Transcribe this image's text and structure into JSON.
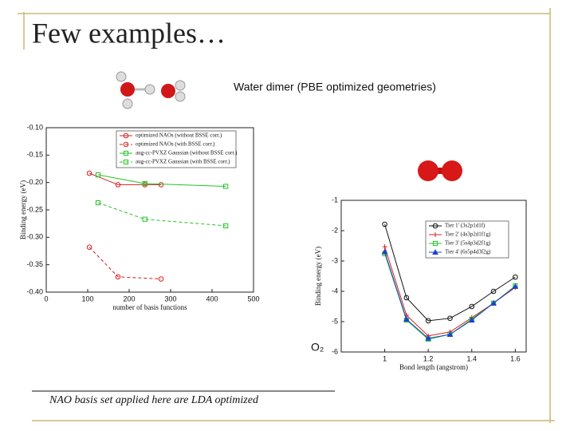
{
  "slide_title": "Few examples…",
  "water_caption": "Water dimer (PBE optimized geometries)",
  "o2_caption": "O₂",
  "footer": "NAO basis set applied here are LDA optimized",
  "chart_data": [
    {
      "type": "line",
      "xlabel": "number of basis functions",
      "ylabel": "Binding energy (eV)",
      "xlim": [
        0,
        500
      ],
      "xticks": [
        0,
        100,
        200,
        300,
        400,
        500
      ],
      "ylim": [
        -0.4,
        -0.1
      ],
      "yticks": [
        {
          "value": -0.1,
          "label": "-0.10"
        },
        -0.15,
        {
          "value": -0.2,
          "label": "-0.20"
        },
        -0.25,
        {
          "value": -0.3,
          "label": "-0.30"
        },
        -0.35,
        {
          "value": -0.4,
          "label": "-0.40"
        }
      ],
      "legend": "upper right",
      "grid": false,
      "series": [
        {
          "name": "optimized NAOs (without BSSE corr.)",
          "color": "#d42020",
          "marker": "circle",
          "linestyle": "solid",
          "x": [
            104,
            173,
            238,
            277
          ],
          "values": [
            -0.183,
            -0.204,
            -0.204,
            -0.204
          ]
        },
        {
          "name": "optimized NAOs (with BSSE corr.)",
          "color": "#d42020",
          "marker": "circle",
          "linestyle": "dashed",
          "x": [
            104,
            173,
            277
          ],
          "values": [
            -0.318,
            -0.372,
            -0.376
          ]
        },
        {
          "name": "aug-cc-PVXZ Gaussian (without BSSE corr.)",
          "color": "#22c422",
          "marker": "square",
          "linestyle": "solid",
          "x": [
            125,
            238,
            433
          ],
          "values": [
            -0.186,
            -0.202,
            -0.207
          ]
        },
        {
          "name": "aug-cc-PVXZ Gaussian (with BSSE corr.)",
          "color": "#22c422",
          "marker": "square",
          "linestyle": "dashed",
          "x": [
            125,
            238,
            433
          ],
          "values": [
            -0.237,
            -0.267,
            -0.279
          ]
        }
      ]
    },
    {
      "type": "line",
      "xlabel": "Bond length (angstrom)",
      "ylabel": "Binding energy (eV)",
      "xlim": [
        0.8,
        1.65
      ],
      "xticks": [
        1,
        1.2,
        1.4,
        1.6
      ],
      "ylim": [
        -6,
        -1
      ],
      "yticks": [
        -1,
        -2,
        -3,
        -4,
        -5,
        -6
      ],
      "legend": "upper right",
      "grid": false,
      "series": [
        {
          "name": "Tier 1' (3s2p1d1f)",
          "color": "#111111",
          "marker": "circle",
          "linestyle": "solid",
          "x": [
            1,
            1.1,
            1.2,
            1.3,
            1.4,
            1.5,
            1.6
          ],
          "values": [
            -1.79,
            -4.21,
            -4.97,
            -4.89,
            -4.5,
            -4.0,
            -3.53
          ]
        },
        {
          "name": "Tier 2' (4s3p2d1f1g)",
          "color": "#d42020",
          "marker": "plus",
          "linestyle": "solid",
          "x": [
            1,
            1.1,
            1.2,
            1.3,
            1.4,
            1.5,
            1.6
          ],
          "values": [
            -2.53,
            -4.79,
            -5.47,
            -5.34,
            -4.87,
            -4.39,
            -3.87
          ]
        },
        {
          "name": "Tier 3' (5s4p3d2f1g)",
          "color": "#22c422",
          "marker": "square",
          "linestyle": "solid",
          "x": [
            1,
            1.1,
            1.2,
            1.3,
            1.4,
            1.5,
            1.6
          ],
          "values": [
            -2.76,
            -4.95,
            -5.58,
            -5.42,
            -4.92,
            -4.39,
            -3.82
          ]
        },
        {
          "name": "Tier 4' (6s5p4d3f2g)",
          "color": "#2040d0",
          "marker": "triangle",
          "linestyle": "solid",
          "x": [
            1,
            1.1,
            1.2,
            1.3,
            1.4,
            1.5,
            1.6
          ],
          "values": [
            -2.7,
            -4.92,
            -5.55,
            -5.42,
            -4.95,
            -4.39,
            -3.84
          ]
        }
      ]
    }
  ]
}
